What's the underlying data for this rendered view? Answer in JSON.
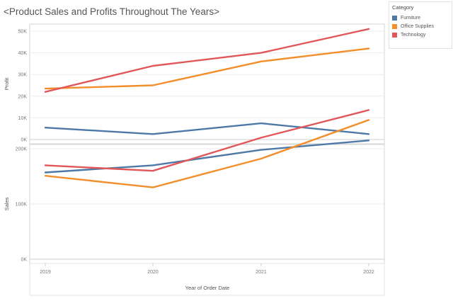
{
  "title": "<Product Sales and Profits Throughout The Years>",
  "legend": {
    "title": "Category",
    "placement": "top-right",
    "items": [
      {
        "label": "Furniture",
        "color": "#4e79a7"
      },
      {
        "label": "Office Supplies",
        "color": "#f28e2b"
      },
      {
        "label": "Technology",
        "color": "#e15759"
      }
    ]
  },
  "chart_data": [
    {
      "type": "line",
      "ylabel": "Profit",
      "x": [
        "2019",
        "2020",
        "2021",
        "2022"
      ],
      "ylim": [
        0,
        53000
      ],
      "yticks": [
        0,
        10000,
        20000,
        30000,
        40000,
        50000
      ],
      "ytick_labels": [
        "0K",
        "10K",
        "20K",
        "30K",
        "40K",
        "50K"
      ],
      "grid": true,
      "series": [
        {
          "name": "Furniture",
          "color": "#4e79a7",
          "values": [
            5500,
            2500,
            7500,
            2500
          ]
        },
        {
          "name": "Office Supplies",
          "color": "#f28e2b",
          "values": [
            23500,
            25000,
            36000,
            42000
          ]
        },
        {
          "name": "Technology",
          "color": "#e15759",
          "values": [
            22000,
            34000,
            40000,
            51000
          ]
        }
      ]
    },
    {
      "type": "line",
      "ylabel": "Sales",
      "xlabel": "Year of Order Date",
      "x": [
        "2019",
        "2020",
        "2021",
        "2022"
      ],
      "ylim": [
        0,
        280000
      ],
      "yticks": [
        0,
        100000,
        200000
      ],
      "ytick_labels": [
        "0K",
        "100K",
        "200K"
      ],
      "grid": true,
      "series": [
        {
          "name": "Furniture",
          "color": "#4e79a7",
          "values": [
            157000,
            170000,
            198000,
            215000
          ]
        },
        {
          "name": "Office Supplies",
          "color": "#f28e2b",
          "values": [
            151000,
            130000,
            182000,
            252000
          ]
        },
        {
          "name": "Technology",
          "color": "#e15759",
          "values": [
            170000,
            160000,
            220000,
            270000
          ]
        }
      ]
    }
  ]
}
